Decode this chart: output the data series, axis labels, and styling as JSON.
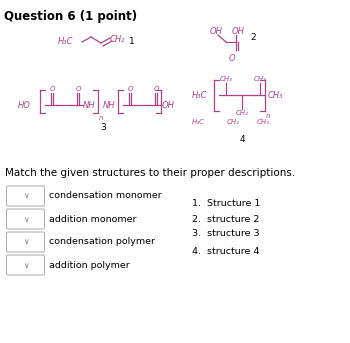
{
  "title": "Question 6 (1 point)",
  "title_fontsize": 8.5,
  "bg_color": "#ffffff",
  "struct_color": "#aa4488",
  "label_color": "#000000",
  "match_text": "Match the given structures to their proper descriptions.",
  "descriptions": [
    "condensation monomer",
    "addition monomer",
    "condensation polymer",
    "addition polymer"
  ],
  "numbered_list": [
    "1.  Structure 1",
    "2.  structure 2",
    "3.  structure 3",
    "4.  structure 4"
  ]
}
